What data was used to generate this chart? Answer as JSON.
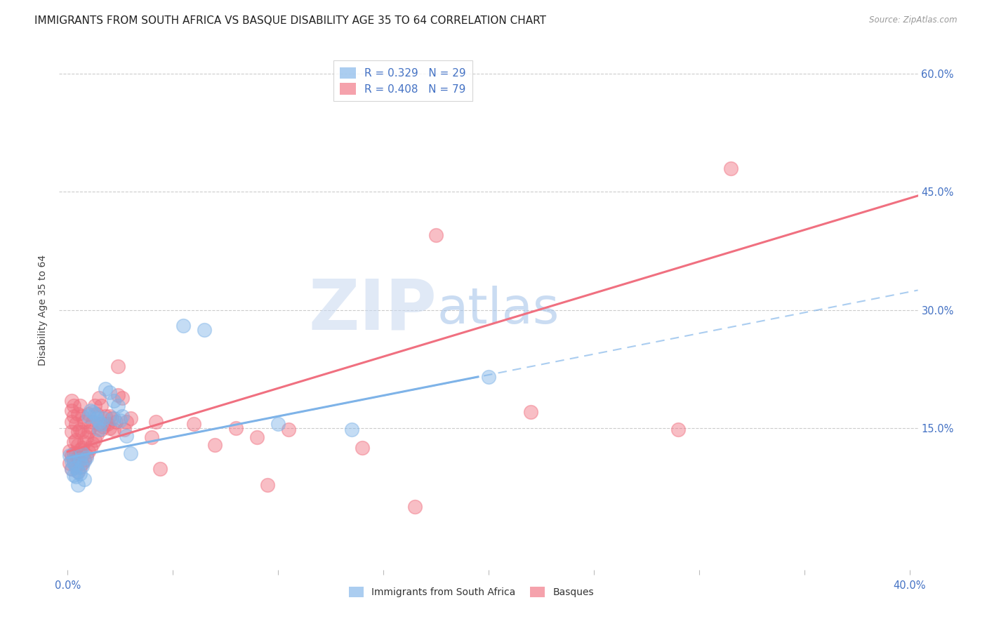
{
  "title": "IMMIGRANTS FROM SOUTH AFRICA VS BASQUE DISABILITY AGE 35 TO 64 CORRELATION CHART",
  "source": "Source: ZipAtlas.com",
  "ylabel": "Disability Age 35 to 64",
  "xlim": [
    -0.004,
    0.404
  ],
  "ylim": [
    -0.03,
    0.63
  ],
  "xticks": [
    0.0,
    0.4
  ],
  "yticks": [
    0.0,
    0.15,
    0.3,
    0.45,
    0.6
  ],
  "watermark_zip": "ZIP",
  "watermark_atlas": "atlas",
  "blue_color": "#7EB3E8",
  "pink_color": "#F07080",
  "blue_scatter": [
    [
      0.001,
      0.115
    ],
    [
      0.002,
      0.108
    ],
    [
      0.002,
      0.098
    ],
    [
      0.003,
      0.105
    ],
    [
      0.003,
      0.09
    ],
    [
      0.004,
      0.1
    ],
    [
      0.004,
      0.088
    ],
    [
      0.005,
      0.095
    ],
    [
      0.005,
      0.078
    ],
    [
      0.006,
      0.11
    ],
    [
      0.006,
      0.092
    ],
    [
      0.007,
      0.118
    ],
    [
      0.007,
      0.102
    ],
    [
      0.008,
      0.108
    ],
    [
      0.008,
      0.085
    ],
    [
      0.009,
      0.112
    ],
    [
      0.01,
      0.165
    ],
    [
      0.011,
      0.172
    ],
    [
      0.012,
      0.17
    ],
    [
      0.013,
      0.168
    ],
    [
      0.014,
      0.162
    ],
    [
      0.015,
      0.158
    ],
    [
      0.015,
      0.148
    ],
    [
      0.016,
      0.155
    ],
    [
      0.017,
      0.162
    ],
    [
      0.018,
      0.2
    ],
    [
      0.02,
      0.195
    ],
    [
      0.022,
      0.185
    ],
    [
      0.022,
      0.162
    ],
    [
      0.024,
      0.178
    ],
    [
      0.025,
      0.16
    ],
    [
      0.026,
      0.165
    ],
    [
      0.028,
      0.14
    ],
    [
      0.03,
      0.118
    ],
    [
      0.055,
      0.28
    ],
    [
      0.065,
      0.275
    ],
    [
      0.1,
      0.155
    ],
    [
      0.135,
      0.148
    ],
    [
      0.2,
      0.215
    ]
  ],
  "pink_scatter": [
    [
      0.001,
      0.12
    ],
    [
      0.001,
      0.105
    ],
    [
      0.002,
      0.098
    ],
    [
      0.002,
      0.115
    ],
    [
      0.002,
      0.145
    ],
    [
      0.002,
      0.158
    ],
    [
      0.002,
      0.172
    ],
    [
      0.002,
      0.185
    ],
    [
      0.003,
      0.108
    ],
    [
      0.003,
      0.118
    ],
    [
      0.003,
      0.132
    ],
    [
      0.003,
      0.165
    ],
    [
      0.003,
      0.178
    ],
    [
      0.004,
      0.102
    ],
    [
      0.004,
      0.118
    ],
    [
      0.004,
      0.135
    ],
    [
      0.004,
      0.155
    ],
    [
      0.005,
      0.095
    ],
    [
      0.005,
      0.112
    ],
    [
      0.005,
      0.128
    ],
    [
      0.005,
      0.145
    ],
    [
      0.005,
      0.168
    ],
    [
      0.006,
      0.1
    ],
    [
      0.006,
      0.122
    ],
    [
      0.006,
      0.148
    ],
    [
      0.006,
      0.178
    ],
    [
      0.007,
      0.105
    ],
    [
      0.007,
      0.125
    ],
    [
      0.007,
      0.145
    ],
    [
      0.007,
      0.165
    ],
    [
      0.008,
      0.11
    ],
    [
      0.008,
      0.132
    ],
    [
      0.008,
      0.158
    ],
    [
      0.009,
      0.115
    ],
    [
      0.009,
      0.138
    ],
    [
      0.01,
      0.12
    ],
    [
      0.01,
      0.145
    ],
    [
      0.01,
      0.168
    ],
    [
      0.011,
      0.125
    ],
    [
      0.011,
      0.152
    ],
    [
      0.012,
      0.13
    ],
    [
      0.012,
      0.158
    ],
    [
      0.013,
      0.135
    ],
    [
      0.013,
      0.178
    ],
    [
      0.014,
      0.142
    ],
    [
      0.014,
      0.168
    ],
    [
      0.015,
      0.155
    ],
    [
      0.015,
      0.188
    ],
    [
      0.016,
      0.148
    ],
    [
      0.016,
      0.178
    ],
    [
      0.017,
      0.152
    ],
    [
      0.018,
      0.165
    ],
    [
      0.019,
      0.155
    ],
    [
      0.02,
      0.15
    ],
    [
      0.02,
      0.165
    ],
    [
      0.021,
      0.162
    ],
    [
      0.022,
      0.148
    ],
    [
      0.023,
      0.158
    ],
    [
      0.024,
      0.228
    ],
    [
      0.024,
      0.192
    ],
    [
      0.026,
      0.188
    ],
    [
      0.027,
      0.148
    ],
    [
      0.028,
      0.158
    ],
    [
      0.03,
      0.162
    ],
    [
      0.04,
      0.138
    ],
    [
      0.042,
      0.158
    ],
    [
      0.044,
      0.098
    ],
    [
      0.06,
      0.155
    ],
    [
      0.07,
      0.128
    ],
    [
      0.08,
      0.15
    ],
    [
      0.09,
      0.138
    ],
    [
      0.095,
      0.078
    ],
    [
      0.14,
      0.125
    ],
    [
      0.165,
      0.05
    ],
    [
      0.175,
      0.395
    ],
    [
      0.22,
      0.17
    ],
    [
      0.29,
      0.148
    ],
    [
      0.315,
      0.48
    ],
    [
      0.105,
      0.148
    ]
  ],
  "blue_trendline_solid": [
    [
      0.0,
      0.112
    ],
    [
      0.195,
      0.215
    ]
  ],
  "pink_trendline_solid": [
    [
      0.0,
      0.12
    ],
    [
      0.404,
      0.445
    ]
  ],
  "blue_trendline_dashed": [
    [
      0.0,
      0.112
    ],
    [
      0.404,
      0.325
    ]
  ],
  "title_fontsize": 11,
  "axis_label_fontsize": 10,
  "tick_fontsize": 10.5,
  "tick_color": "#4472C4",
  "background_color": "#ffffff",
  "grid_color": "#cccccc"
}
